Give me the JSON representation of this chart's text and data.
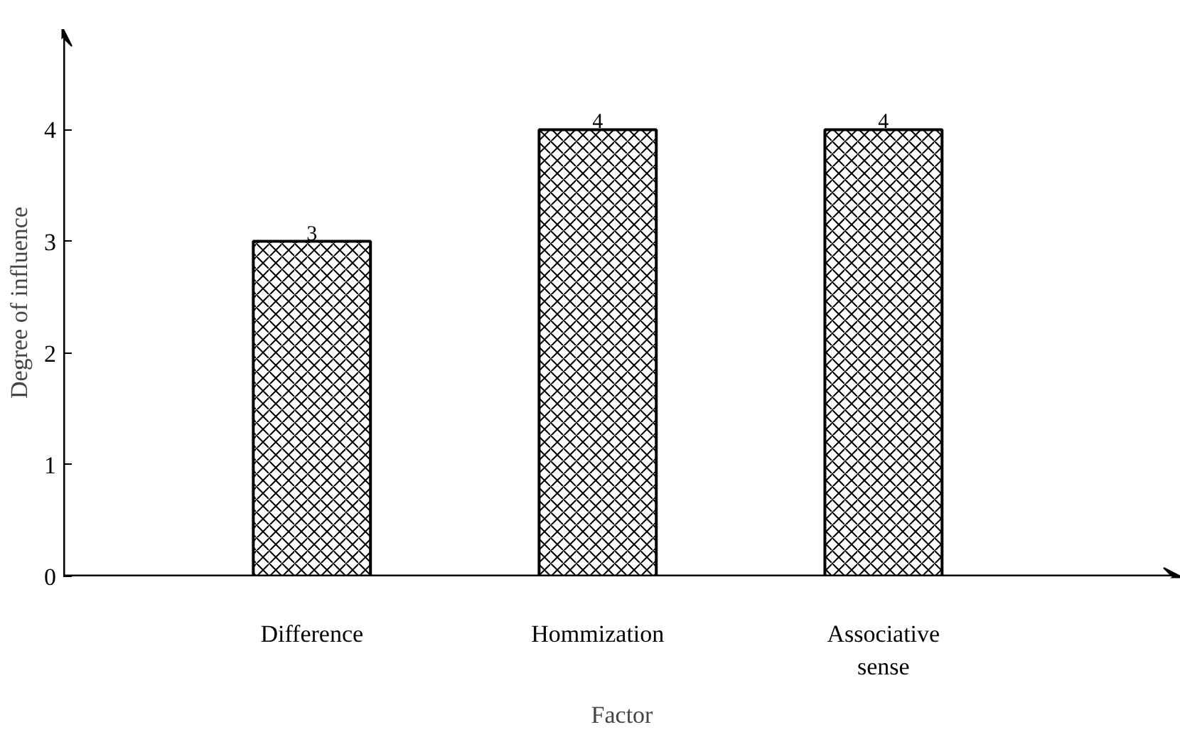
{
  "chart_data": {
    "type": "bar",
    "xlabel": "Factor",
    "ylabel": "Degree of influence",
    "categories": [
      "Difference",
      "Hommization",
      "Associative sense"
    ],
    "values": [
      3,
      4,
      4
    ],
    "color": "#000000",
    "ylim": [
      0,
      4.9
    ],
    "yticks": [
      0,
      1,
      2,
      3,
      4
    ],
    "grid": false,
    "data_labels": true
  }
}
